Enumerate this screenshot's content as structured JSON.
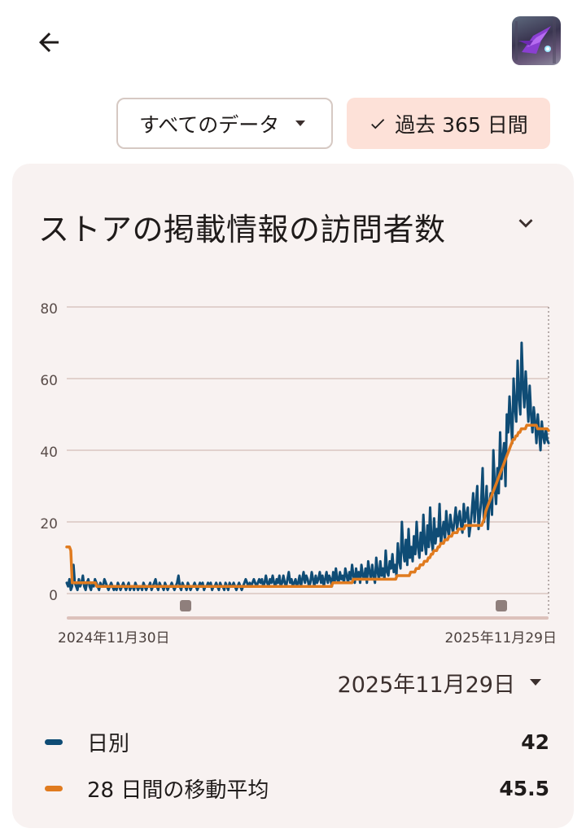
{
  "header": {
    "back_icon": "arrow-left-icon",
    "app_icon": "game-app-icon"
  },
  "filters": {
    "scope_label": "すべてのデータ",
    "range_label": "過去 365 日間"
  },
  "card": {
    "title": "ストアの掲載情報の訪問者数",
    "collapse_icon": "chevron-down-icon"
  },
  "selected_date": "2025年11月29日",
  "legend": [
    {
      "name": "日別",
      "value": "42",
      "color": "#0f4c75"
    },
    {
      "name": "28 日間の移動平均",
      "value": "45.5",
      "color": "#e07b1f"
    }
  ],
  "chart_data": {
    "type": "line",
    "x_start": "2024-11-30",
    "x_end": "2025-11-29",
    "x_tick_labels": [
      "2024年11月30日",
      "2025年11月29日"
    ],
    "y_ticks": [
      0,
      20,
      40,
      60,
      80
    ],
    "ylim": [
      0,
      80
    ],
    "grid": true,
    "series": [
      {
        "name": "日別",
        "color": "#0f4c75",
        "values": [
          3,
          2,
          4,
          1,
          2,
          8,
          3,
          2,
          1,
          4,
          2,
          3,
          5,
          2,
          1,
          3,
          4,
          2,
          1,
          3,
          2,
          4,
          3,
          2,
          1,
          3,
          2,
          2,
          4,
          3,
          2,
          1,
          2,
          3,
          2,
          1,
          2,
          1,
          3,
          2,
          1,
          2,
          3,
          2,
          1,
          2,
          3,
          1,
          2,
          2,
          1,
          3,
          2,
          1,
          2,
          2,
          1,
          3,
          2,
          1,
          2,
          2,
          3,
          1,
          2,
          3,
          4,
          2,
          1,
          3,
          2,
          2,
          1,
          3,
          2,
          1,
          2,
          2,
          3,
          2,
          1,
          2,
          3,
          5,
          2,
          1,
          3,
          2,
          2,
          1,
          3,
          2,
          1,
          2,
          2,
          3,
          2,
          1,
          2,
          3,
          2,
          3,
          1,
          2,
          2,
          3,
          2,
          3,
          1,
          2,
          2,
          3,
          2,
          1,
          3,
          2,
          2,
          1,
          3,
          2,
          1,
          3,
          2,
          2,
          3,
          2,
          1,
          2,
          3,
          2,
          1,
          2,
          3,
          4,
          3,
          2,
          3,
          2,
          3,
          4,
          3,
          2,
          3,
          4,
          3,
          4,
          2,
          3,
          5,
          3,
          2,
          4,
          3,
          5,
          3,
          2,
          4,
          3,
          5,
          2,
          3,
          5,
          3,
          2,
          4,
          6,
          3,
          4,
          2,
          3,
          4,
          2,
          3,
          5,
          2,
          4,
          6,
          3,
          5,
          4,
          2,
          3,
          6,
          4,
          2,
          5,
          3,
          4,
          6,
          3,
          5,
          2,
          4,
          6,
          3,
          5,
          4,
          2,
          6,
          3,
          7,
          4,
          3,
          6,
          4,
          5,
          3,
          7,
          5,
          3,
          6,
          4,
          8,
          5,
          3,
          7,
          4,
          6,
          3,
          8,
          5,
          4,
          7,
          3,
          9,
          6,
          4,
          8,
          5,
          3,
          10,
          6,
          4,
          9,
          5,
          7,
          4,
          12,
          6,
          5,
          9,
          7,
          11,
          6,
          8,
          5,
          14,
          9,
          7,
          20,
          12,
          9,
          15,
          8,
          18,
          10,
          13,
          9,
          16,
          11,
          20,
          13,
          10,
          17,
          12,
          22,
          14,
          11,
          19,
          13,
          24,
          15,
          12,
          21,
          14,
          18,
          16,
          25,
          14,
          17,
          20,
          15,
          23,
          18,
          16,
          22,
          19,
          17,
          20,
          24,
          18,
          21,
          23,
          19,
          17,
          25,
          20,
          22,
          24,
          16,
          19,
          23,
          28,
          20,
          25,
          30,
          18,
          22,
          26,
          35,
          20,
          24,
          30,
          18,
          25,
          28,
          22,
          40,
          30,
          25,
          35,
          28,
          45,
          32,
          38,
          42,
          30,
          50,
          45,
          55,
          48,
          42,
          60,
          52,
          48,
          65,
          55,
          50,
          70,
          58,
          52,
          62,
          55,
          48,
          58,
          50,
          45,
          52,
          48,
          42,
          50,
          45,
          40,
          48,
          44,
          42,
          46,
          43,
          42
        ]
      },
      {
        "name": "28 日間の移動平均",
        "color": "#e07b1f",
        "values": [
          13,
          13,
          13,
          12,
          3,
          3,
          3,
          3,
          3,
          3,
          3,
          3,
          3,
          3,
          3,
          3,
          3,
          3,
          3,
          3,
          3,
          3,
          2,
          2,
          2,
          2,
          2,
          2,
          2,
          2,
          2,
          2,
          2,
          2,
          2,
          2,
          2,
          2,
          2,
          2,
          2,
          2,
          2,
          2,
          2,
          2,
          2,
          2,
          2,
          2,
          2,
          2,
          2,
          2,
          2,
          2,
          2,
          2,
          2,
          2,
          2,
          2,
          2,
          2,
          2,
          2,
          2,
          2,
          2,
          2,
          2,
          2,
          2,
          2,
          2,
          2,
          2,
          2,
          2,
          2,
          2,
          2,
          2,
          2,
          2,
          2,
          2,
          2,
          2,
          2,
          2,
          2,
          2,
          2,
          2,
          2,
          2,
          2,
          2,
          2,
          2,
          2,
          2,
          2,
          2,
          2,
          2,
          2,
          2,
          2,
          2,
          2,
          2,
          2,
          2,
          2,
          2,
          2,
          2,
          2,
          2,
          2,
          2,
          2,
          2,
          2,
          2,
          2,
          2,
          2,
          2,
          2,
          2,
          2,
          2,
          2,
          2,
          2,
          2,
          2,
          2,
          2,
          2,
          2,
          2,
          2,
          2,
          2,
          2,
          2,
          2,
          2,
          2,
          2,
          2,
          2,
          2,
          2,
          2,
          2,
          2,
          2,
          2,
          2,
          2,
          2,
          2,
          2,
          2,
          2,
          2,
          2,
          2,
          2,
          2,
          2,
          2,
          2,
          2,
          2,
          2,
          2,
          2,
          2,
          2,
          2,
          2,
          2,
          2,
          2,
          2,
          2,
          2,
          2,
          2,
          3,
          3,
          3,
          3,
          3,
          3,
          3,
          3,
          3,
          3,
          3,
          3,
          3,
          3,
          3,
          4,
          4,
          4,
          4,
          4,
          4,
          4,
          4,
          4,
          4,
          4,
          4,
          4,
          4,
          4,
          4,
          4,
          4,
          4,
          4,
          4,
          4,
          4,
          4,
          4,
          4,
          4,
          4,
          4,
          4,
          4,
          4,
          5,
          5,
          5,
          5,
          5,
          5,
          5,
          5,
          5,
          5,
          6,
          6,
          6,
          6,
          7,
          7,
          7,
          8,
          8,
          8,
          9,
          9,
          9,
          10,
          10,
          11,
          11,
          12,
          12,
          12,
          13,
          13,
          14,
          14,
          14,
          15,
          15,
          15,
          16,
          16,
          16,
          17,
          17,
          17,
          17,
          18,
          18,
          18,
          18,
          18,
          19,
          19,
          19,
          19,
          19,
          19,
          19,
          19,
          19,
          19,
          19,
          19,
          19,
          20,
          21,
          23,
          24,
          25,
          26,
          27,
          28,
          29,
          30,
          31,
          32,
          33,
          34,
          35,
          36,
          37,
          38,
          39,
          40,
          41,
          42,
          43,
          43,
          44,
          44,
          45,
          45,
          46,
          46,
          46,
          46,
          47,
          47,
          47,
          47,
          47,
          47,
          47,
          47,
          46,
          46,
          46,
          46,
          46,
          46,
          46,
          46,
          45.5
        ]
      }
    ]
  }
}
